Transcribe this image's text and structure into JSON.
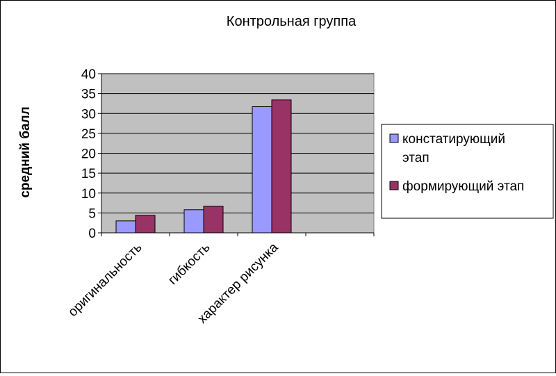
{
  "chart_data": {
    "type": "bar",
    "title": "Контрольная группа",
    "xlabel": "",
    "ylabel": "средний балл",
    "categories": [
      "оригинальность",
      "гибкость",
      "характер рисунка",
      ""
    ],
    "series": [
      {
        "name": "констатирующий этап",
        "values": [
          3,
          5.8,
          31.7,
          null
        ],
        "color": "#9999ff"
      },
      {
        "name": "формирующий этап",
        "values": [
          4.4,
          6.7,
          33.4,
          null
        ],
        "color": "#993366"
      }
    ],
    "ylim": [
      0,
      40
    ],
    "yticks": [
      0,
      5,
      10,
      15,
      20,
      25,
      30,
      35,
      40
    ],
    "grid": true,
    "plot_background": "#c0c0c0",
    "legend": {
      "placement": "right",
      "entries": [
        {
          "lines": [
            "констатирующий",
            "этап"
          ],
          "color": "#9999ff"
        },
        {
          "lines": [
            "формирующий этап"
          ],
          "color": "#993366"
        }
      ]
    }
  }
}
